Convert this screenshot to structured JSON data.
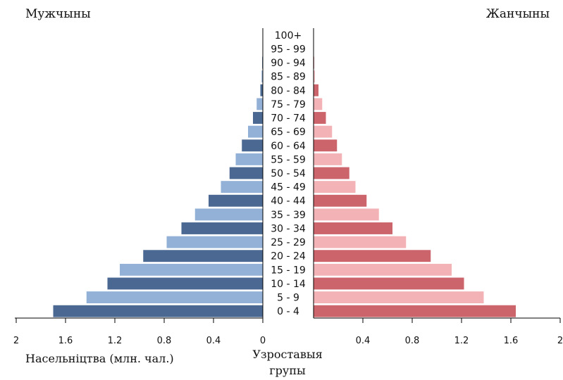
{
  "chart_data": {
    "type": "bar",
    "orientation": "horizontal",
    "layout": "population-pyramid",
    "left_title": "Мужчыны",
    "right_title": "Жанчыны",
    "xlabel": "Насельніцтва (млн. чал.)",
    "center_label": [
      "Узроставыя",
      "групы"
    ],
    "xlim": [
      0,
      2
    ],
    "tick_labels": [
      "2",
      "1.6",
      "1.2",
      "0.8",
      "0.4",
      "0",
      "0.4",
      "0.8",
      "1.2",
      "1.6",
      "2"
    ],
    "tick_values": [
      2,
      1.6,
      1.2,
      0.8,
      0.4,
      0,
      0.4,
      0.8,
      1.2,
      1.6,
      2
    ],
    "categories": [
      "0 - 4",
      "5 - 9",
      "10 - 14",
      "15 - 19",
      "20 - 24",
      "25 - 29",
      "30 - 34",
      "35 - 39",
      "40 - 44",
      "45 - 49",
      "50 - 54",
      "55 - 59",
      "60 - 64",
      "65 - 69",
      "70 - 74",
      "75 - 79",
      "80 - 84",
      "85 - 89",
      "90 - 94",
      "95 - 99",
      "100+"
    ],
    "series": [
      {
        "name": "Мужчыны",
        "side": "left",
        "colors": [
          "#4a6891",
          "#93b1d6"
        ],
        "values": [
          1.7,
          1.43,
          1.26,
          1.16,
          0.97,
          0.78,
          0.66,
          0.55,
          0.44,
          0.34,
          0.27,
          0.22,
          0.17,
          0.12,
          0.08,
          0.05,
          0.02,
          0.01,
          0.005,
          0.003,
          0.002
        ]
      },
      {
        "name": "Жанчыны",
        "side": "right",
        "colors": [
          "#cc646c",
          "#f3b3b6"
        ],
        "values": [
          1.64,
          1.38,
          1.22,
          1.12,
          0.95,
          0.75,
          0.64,
          0.53,
          0.43,
          0.34,
          0.29,
          0.23,
          0.19,
          0.15,
          0.1,
          0.07,
          0.04,
          0.01,
          0.005,
          0.003,
          0.002
        ]
      }
    ],
    "grid": false,
    "legend": "none"
  }
}
